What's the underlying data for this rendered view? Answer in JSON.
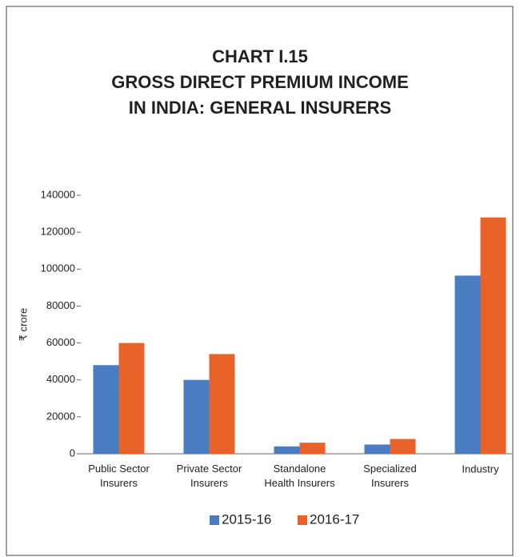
{
  "chart_data": {
    "type": "bar",
    "title": "CHART I.15\nGROSS DIRECT PREMIUM INCOME\nIN INDIA: GENERAL INSURERS",
    "y_label": "₹ crore",
    "categories": [
      "Public Sector\nInsurers",
      "Private Sector\nInsurers",
      "Standalone\nHealth Insurers",
      "Specialized\nInsurers",
      "Industry"
    ],
    "series": [
      {
        "name": "2015-16",
        "color": "#4a7cc2",
        "values": [
          48000,
          40000,
          4000,
          5000,
          96500
        ]
      },
      {
        "name": "2016-17",
        "color": "#e8622a",
        "values": [
          60000,
          54000,
          6000,
          8000,
          128000
        ]
      }
    ],
    "ylim": [
      0,
      140000
    ],
    "yticks": [
      0,
      20000,
      40000,
      60000,
      80000,
      100000,
      120000,
      140000
    ],
    "legend": "bottom"
  }
}
